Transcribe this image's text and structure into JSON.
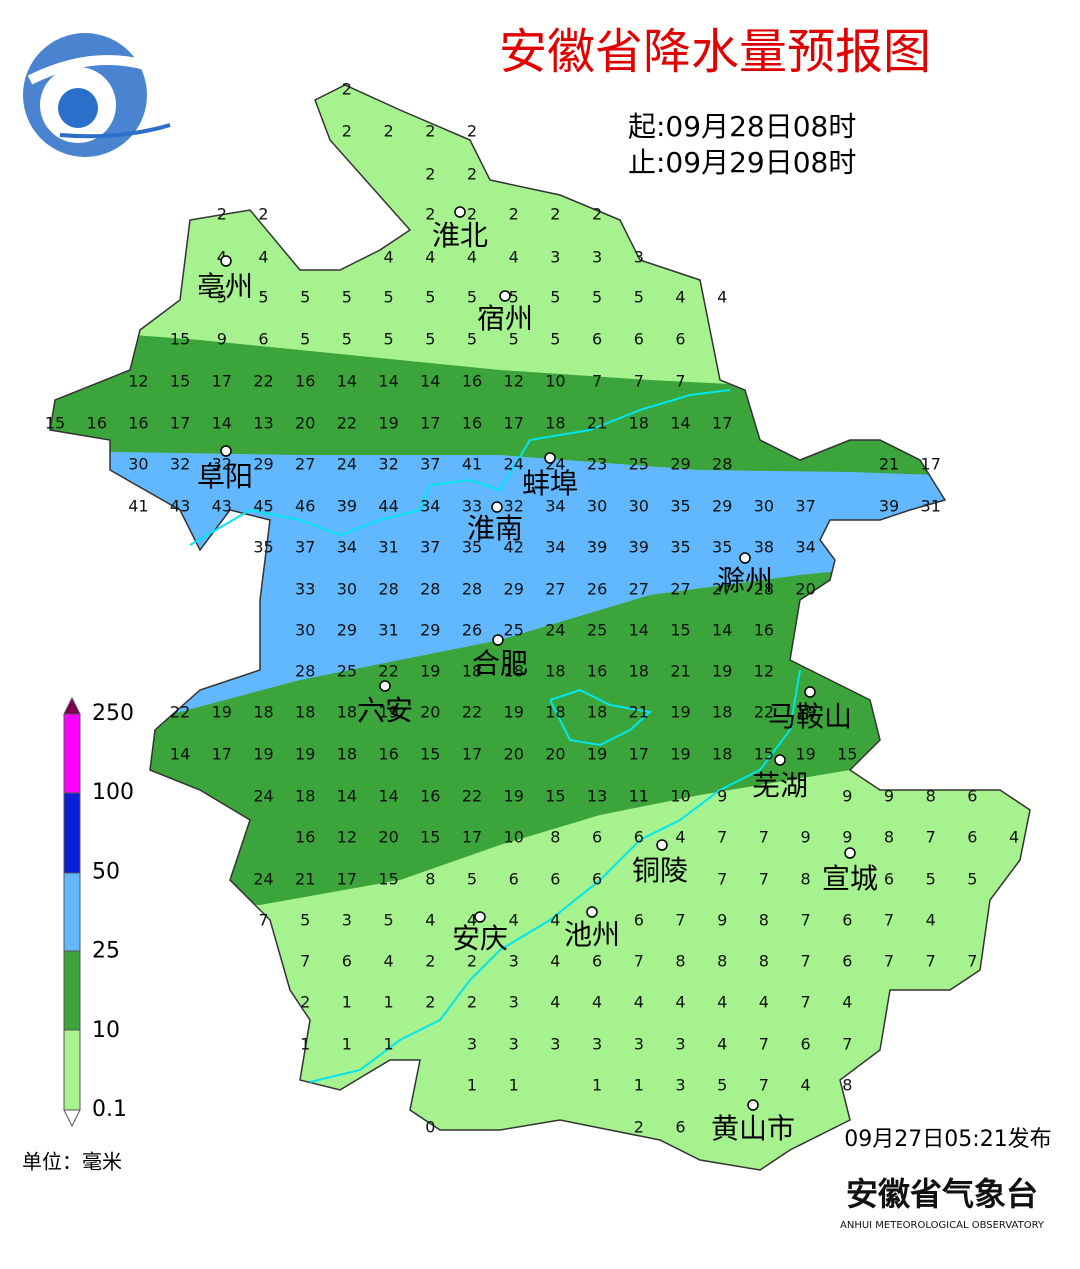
{
  "header": {
    "title": "安徽省降水量预报图",
    "start": "起:09月28日08时",
    "end": "止:09月29日08时"
  },
  "grid": {
    "rows": [
      [
        null,
        null,
        null,
        null,
        null,
        null,
        null,
        2,
        null,
        null,
        null,
        null,
        null,
        null,
        null,
        null,
        null,
        null,
        null,
        null,
        null,
        null,
        null,
        null
      ],
      [
        null,
        null,
        null,
        null,
        null,
        null,
        null,
        2,
        2,
        2,
        2,
        null,
        null,
        null,
        null,
        null,
        null,
        null,
        null,
        null,
        null,
        null,
        null,
        null
      ],
      [
        null,
        null,
        null,
        null,
        null,
        null,
        null,
        null,
        null,
        2,
        2,
        null,
        null,
        null,
        null,
        null,
        null,
        null,
        null,
        null,
        null,
        null,
        null,
        null
      ],
      [
        null,
        null,
        null,
        null,
        2,
        2,
        null,
        null,
        null,
        2,
        2,
        2,
        2,
        2,
        null,
        null,
        null,
        null,
        null,
        null,
        null,
        null,
        null,
        null
      ],
      [
        null,
        null,
        null,
        null,
        4,
        4,
        null,
        null,
        4,
        4,
        4,
        4,
        3,
        3,
        3,
        null,
        null,
        null,
        null,
        null,
        null,
        null,
        null,
        null
      ],
      [
        null,
        null,
        null,
        null,
        5,
        5,
        5,
        5,
        5,
        5,
        5,
        5,
        5,
        5,
        5,
        4,
        4,
        null,
        null,
        null,
        null,
        null,
        null,
        null
      ],
      [
        null,
        null,
        null,
        15,
        9,
        6,
        5,
        5,
        5,
        5,
        5,
        5,
        5,
        6,
        6,
        6,
        null,
        null,
        null,
        null,
        null,
        null,
        null,
        null
      ],
      [
        null,
        null,
        12,
        15,
        17,
        22,
        16,
        14,
        14,
        14,
        16,
        12,
        10,
        7,
        7,
        7,
        null,
        null,
        null,
        null,
        null,
        null,
        null,
        null
      ],
      [
        15,
        16,
        16,
        17,
        14,
        13,
        20,
        22,
        19,
        17,
        16,
        17,
        18,
        21,
        18,
        14,
        17,
        null,
        null,
        null,
        null,
        null,
        null,
        null
      ],
      [
        null,
        null,
        30,
        32,
        32,
        29,
        27,
        24,
        32,
        37,
        41,
        24,
        24,
        23,
        25,
        29,
        28,
        null,
        null,
        null,
        21,
        17,
        null,
        null
      ],
      [
        null,
        null,
        41,
        43,
        43,
        45,
        46,
        39,
        44,
        34,
        33,
        32,
        34,
        30,
        30,
        35,
        29,
        30,
        37,
        null,
        39,
        31,
        null,
        null
      ],
      [
        null,
        null,
        null,
        null,
        null,
        35,
        37,
        34,
        31,
        37,
        35,
        42,
        34,
        39,
        39,
        35,
        35,
        38,
        34,
        null,
        null,
        null,
        null,
        null
      ],
      [
        null,
        null,
        null,
        null,
        null,
        null,
        33,
        30,
        28,
        28,
        28,
        29,
        27,
        26,
        27,
        27,
        27,
        28,
        20,
        null,
        null,
        null,
        null,
        null
      ],
      [
        null,
        null,
        null,
        null,
        null,
        null,
        30,
        29,
        31,
        29,
        26,
        25,
        24,
        25,
        14,
        15,
        14,
        16,
        null,
        null,
        null,
        null,
        null,
        null
      ],
      [
        null,
        null,
        null,
        null,
        null,
        null,
        28,
        25,
        22,
        19,
        18,
        18,
        18,
        16,
        18,
        21,
        19,
        12,
        null,
        null,
        null,
        null,
        null,
        null
      ],
      [
        null,
        null,
        null,
        22,
        19,
        18,
        18,
        18,
        19,
        20,
        22,
        19,
        18,
        18,
        21,
        19,
        18,
        22,
        19,
        null,
        null,
        null,
        null,
        null
      ],
      [
        null,
        null,
        null,
        14,
        17,
        19,
        19,
        18,
        16,
        15,
        17,
        20,
        20,
        19,
        17,
        19,
        18,
        15,
        19,
        15,
        null,
        null,
        null,
        null
      ],
      [
        null,
        null,
        null,
        null,
        null,
        24,
        18,
        14,
        14,
        16,
        22,
        19,
        15,
        13,
        11,
        10,
        9,
        null,
        null,
        9,
        9,
        8,
        6,
        null
      ],
      [
        null,
        null,
        null,
        null,
        null,
        null,
        16,
        12,
        20,
        15,
        17,
        10,
        8,
        6,
        6,
        4,
        7,
        7,
        9,
        9,
        8,
        7,
        6,
        4
      ],
      [
        null,
        null,
        null,
        null,
        null,
        24,
        21,
        17,
        15,
        8,
        5,
        6,
        6,
        6,
        null,
        null,
        7,
        7,
        8,
        null,
        6,
        5,
        5,
        null
      ],
      [
        null,
        null,
        null,
        null,
        null,
        7,
        5,
        3,
        5,
        4,
        4,
        4,
        4,
        null,
        6,
        7,
        9,
        8,
        7,
        6,
        7,
        4,
        null,
        null
      ],
      [
        null,
        null,
        null,
        null,
        null,
        null,
        7,
        6,
        4,
        2,
        2,
        3,
        4,
        6,
        7,
        8,
        8,
        8,
        7,
        6,
        7,
        7,
        7,
        null
      ],
      [
        null,
        null,
        null,
        null,
        null,
        null,
        2,
        1,
        1,
        2,
        2,
        3,
        4,
        4,
        4,
        4,
        4,
        4,
        7,
        4,
        null,
        null,
        null,
        null
      ],
      [
        null,
        null,
        null,
        null,
        null,
        null,
        1,
        1,
        1,
        null,
        3,
        3,
        3,
        3,
        3,
        3,
        4,
        7,
        6,
        7,
        null,
        null,
        null,
        null
      ],
      [
        null,
        null,
        null,
        null,
        null,
        null,
        null,
        null,
        null,
        null,
        1,
        1,
        null,
        1,
        1,
        3,
        5,
        7,
        4,
        8,
        null,
        null,
        null,
        null
      ],
      [
        null,
        null,
        null,
        null,
        null,
        null,
        null,
        null,
        null,
        0,
        null,
        null,
        null,
        null,
        2,
        6,
        null,
        null,
        null,
        null,
        null,
        null,
        null,
        null
      ]
    ]
  },
  "cities": [
    {
      "label": "淮北"
    },
    {
      "label": "亳州"
    },
    {
      "label": "宿州"
    },
    {
      "label": "阜阳"
    },
    {
      "label": "蚌埠"
    },
    {
      "label": "淮南"
    },
    {
      "label": "滁州"
    },
    {
      "label": "合肥"
    },
    {
      "label": "六安"
    },
    {
      "label": "马鞍山"
    },
    {
      "label": "芜湖"
    },
    {
      "label": "铜陵"
    },
    {
      "label": "宣城"
    },
    {
      "label": "安庆"
    },
    {
      "label": "池州"
    },
    {
      "label": "黄山市"
    }
  ],
  "legend": {
    "ticks": [
      250,
      100,
      50,
      25,
      10,
      0.1
    ],
    "unit": "单位：毫米"
  },
  "footer": {
    "issued": "09月27日05:21发布",
    "org": "安徽省气象台",
    "org_en": "ANHUI METEOROLOGICAL OBSERVATORY"
  }
}
